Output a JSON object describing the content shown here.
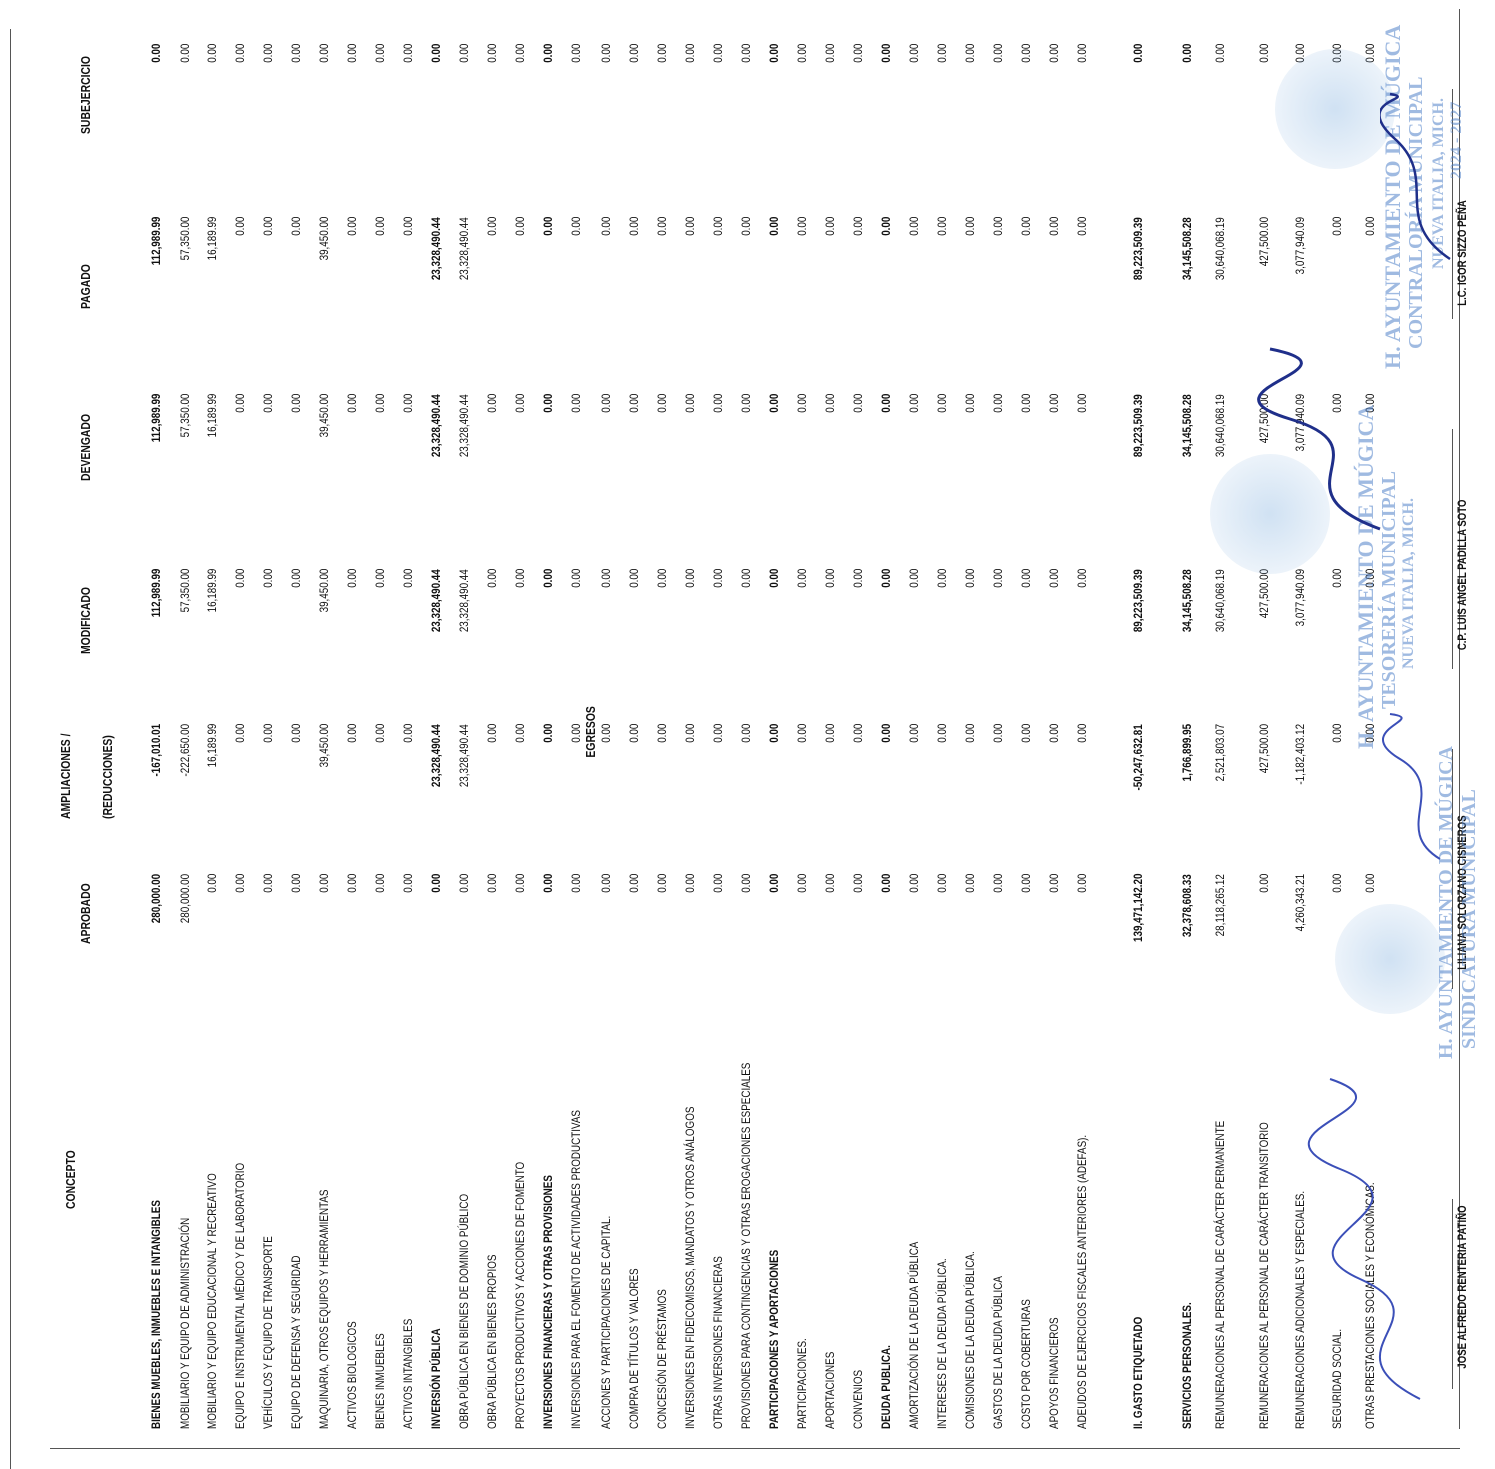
{
  "title": "EGRESOS",
  "headers": {
    "concepto": "CONCEPTO",
    "aprobado": "APROBADO",
    "ampliaciones": "AMPLIACIONES /",
    "reducciones": "(REDUCCIONES)",
    "modificado": "MODIFICADO",
    "devengado": "DEVENGADO",
    "pagado": "PAGADO",
    "subejercicio": "SUBEJERCICIO"
  },
  "rows": [
    {
      "concepto": "BIENES MUEBLES, INMUEBLES E INTANGIBLES",
      "aprobado": "280,000.00",
      "ampliaciones": "-167,010.01",
      "modificado": "112,989.99",
      "devengado": "112,989.99",
      "pagado": "112,989.99",
      "subejercicio": "0.00",
      "bold": true
    },
    {
      "concepto": "MOBILIARIO Y EQUIPO DE ADMINISTRACIÓN",
      "aprobado": "280,000.00",
      "ampliaciones": "-222,650.00",
      "modificado": "57,350.00",
      "devengado": "57,350.00",
      "pagado": "57,350.00",
      "subejercicio": "0.00"
    },
    {
      "concepto": "MOBILIARIO Y EQUIPO EDUCACIONAL Y RECREATIVO",
      "aprobado": "0.00",
      "ampliaciones": "16,189.99",
      "modificado": "16,189.99",
      "devengado": "16,189.99",
      "pagado": "16,189.99",
      "subejercicio": "0.00"
    },
    {
      "concepto": "EQUIPO E INSTRUMENTAL MÉDICO Y DE LABORATORIO",
      "aprobado": "0.00",
      "ampliaciones": "0.00",
      "modificado": "0.00",
      "devengado": "0.00",
      "pagado": "0.00",
      "subejercicio": "0.00"
    },
    {
      "concepto": "VEHÍCULOS Y EQUIPO DE TRANSPORTE",
      "aprobado": "0.00",
      "ampliaciones": "0.00",
      "modificado": "0.00",
      "devengado": "0.00",
      "pagado": "0.00",
      "subejercicio": "0.00"
    },
    {
      "concepto": "EQUIPO DE DEFENSA Y SEGURIDAD",
      "aprobado": "0.00",
      "ampliaciones": "0.00",
      "modificado": "0.00",
      "devengado": "0.00",
      "pagado": "0.00",
      "subejercicio": "0.00"
    },
    {
      "concepto": "MAQUINARIA, OTROS EQUIPOS Y HERRAMIENTAS",
      "aprobado": "0.00",
      "ampliaciones": "39,450.00",
      "modificado": "39,450.00",
      "devengado": "39,450.00",
      "pagado": "39,450.00",
      "subejercicio": "0.00"
    },
    {
      "concepto": "ACTIVOS BIOLOGICOS",
      "aprobado": "0.00",
      "ampliaciones": "0.00",
      "modificado": "0.00",
      "devengado": "0.00",
      "pagado": "0.00",
      "subejercicio": "0.00"
    },
    {
      "concepto": "BIENES INMUEBLES",
      "aprobado": "0.00",
      "ampliaciones": "0.00",
      "modificado": "0.00",
      "devengado": "0.00",
      "pagado": "0.00",
      "subejercicio": "0.00"
    },
    {
      "concepto": "ACTIVOS INTANGIBLES",
      "aprobado": "0.00",
      "ampliaciones": "0.00",
      "modificado": "0.00",
      "devengado": "0.00",
      "pagado": "0.00",
      "subejercicio": "0.00"
    },
    {
      "concepto": "INVERSIÓN PÚBLICA",
      "aprobado": "0.00",
      "ampliaciones": "23,328,490.44",
      "modificado": "23,328,490.44",
      "devengado": "23,328,490.44",
      "pagado": "23,328,490.44",
      "subejercicio": "0.00",
      "bold": true
    },
    {
      "concepto": "OBRA PÚBLICA EN BIENES DE DOMINIO PÚBLICO",
      "aprobado": "0.00",
      "ampliaciones": "23,328,490.44",
      "modificado": "23,328,490.44",
      "devengado": "23,328,490.44",
      "pagado": "23,328,490.44",
      "subejercicio": "0.00"
    },
    {
      "concepto": "OBRA PÚBLICA EN BIENES PROPIOS",
      "aprobado": "0.00",
      "ampliaciones": "0.00",
      "modificado": "0.00",
      "devengado": "0.00",
      "pagado": "0.00",
      "subejercicio": "0.00"
    },
    {
      "concepto": "PROYECTOS PRODUCTIVOS Y ACCIONES DE FOMENTO",
      "aprobado": "0.00",
      "ampliaciones": "0.00",
      "modificado": "0.00",
      "devengado": "0.00",
      "pagado": "0.00",
      "subejercicio": "0.00"
    },
    {
      "concepto": "INVERSIONES FINANCIERAS Y OTRAS PROVISIONES",
      "aprobado": "0.00",
      "ampliaciones": "0.00",
      "modificado": "0.00",
      "devengado": "0.00",
      "pagado": "0.00",
      "subejercicio": "0.00",
      "bold": true
    },
    {
      "concepto": "INVERSIONES PARA EL FOMENTO DE ACTIVIDADES PRODUCTIVAS",
      "aprobado": "0.00",
      "ampliaciones": "0.00",
      "modificado": "0.00",
      "devengado": "0.00",
      "pagado": "0.00",
      "subejercicio": "0.00"
    },
    {
      "concepto": "ACCIONES Y PARTICIPACIONES DE CAPITAL.",
      "aprobado": "0.00",
      "ampliaciones": "0.00",
      "modificado": "0.00",
      "devengado": "0.00",
      "pagado": "0.00",
      "subejercicio": "0.00"
    },
    {
      "concepto": "COMPRA DE TÍTULOS Y VALORES",
      "aprobado": "0.00",
      "ampliaciones": "0.00",
      "modificado": "0.00",
      "devengado": "0.00",
      "pagado": "0.00",
      "subejercicio": "0.00"
    },
    {
      "concepto": "CONCESIÓN DE PRÉSTAMOS",
      "aprobado": "0.00",
      "ampliaciones": "0.00",
      "modificado": "0.00",
      "devengado": "0.00",
      "pagado": "0.00",
      "subejercicio": "0.00"
    },
    {
      "concepto": "INVERSIONES EN FIDEICOMISOS, MANDATOS Y OTROS ANÁLOGOS",
      "aprobado": "0.00",
      "ampliaciones": "0.00",
      "modificado": "0.00",
      "devengado": "0.00",
      "pagado": "0.00",
      "subejercicio": "0.00"
    },
    {
      "concepto": "OTRAS INVERSIONES FINANCIERAS",
      "aprobado": "0.00",
      "ampliaciones": "0.00",
      "modificado": "0.00",
      "devengado": "0.00",
      "pagado": "0.00",
      "subejercicio": "0.00"
    },
    {
      "concepto": "PROVISIONES PARA CONTINGENCIAS Y OTRAS EROGACIONES ESPECIALES",
      "aprobado": "0.00",
      "ampliaciones": "0.00",
      "modificado": "0.00",
      "devengado": "0.00",
      "pagado": "0.00",
      "subejercicio": "0.00"
    },
    {
      "concepto": "PARTICIPACIONES Y APORTACIONES",
      "aprobado": "0.00",
      "ampliaciones": "0.00",
      "modificado": "0.00",
      "devengado": "0.00",
      "pagado": "0.00",
      "subejercicio": "0.00",
      "bold": true
    },
    {
      "concepto": "PARTICIPACIONES.",
      "aprobado": "0.00",
      "ampliaciones": "0.00",
      "modificado": "0.00",
      "devengado": "0.00",
      "pagado": "0.00",
      "subejercicio": "0.00"
    },
    {
      "concepto": "APORTACIONES",
      "aprobado": "0.00",
      "ampliaciones": "0.00",
      "modificado": "0.00",
      "devengado": "0.00",
      "pagado": "0.00",
      "subejercicio": "0.00"
    },
    {
      "concepto": "CONVENIOS",
      "aprobado": "0.00",
      "ampliaciones": "0.00",
      "modificado": "0.00",
      "devengado": "0.00",
      "pagado": "0.00",
      "subejercicio": "0.00"
    },
    {
      "concepto": "DEUDA PUBLICA.",
      "aprobado": "0.00",
      "ampliaciones": "0.00",
      "modificado": "0.00",
      "devengado": "0.00",
      "pagado": "0.00",
      "subejercicio": "0.00",
      "bold": true
    },
    {
      "concepto": "AMORTIZACIÓN DE LA DEUDA PÚBLICA",
      "aprobado": "0.00",
      "ampliaciones": "0.00",
      "modificado": "0.00",
      "devengado": "0.00",
      "pagado": "0.00",
      "subejercicio": "0.00"
    },
    {
      "concepto": "INTERESES DE LA DEUDA PÚBLICA.",
      "aprobado": "0.00",
      "ampliaciones": "0.00",
      "modificado": "0.00",
      "devengado": "0.00",
      "pagado": "0.00",
      "subejercicio": "0.00"
    },
    {
      "concepto": "COMISIONES DE LA DEUDA PÚBLICA.",
      "aprobado": "0.00",
      "ampliaciones": "0.00",
      "modificado": "0.00",
      "devengado": "0.00",
      "pagado": "0.00",
      "subejercicio": "0.00"
    },
    {
      "concepto": "GASTOS DE LA DEUDA PÚBLICA",
      "aprobado": "0.00",
      "ampliaciones": "0.00",
      "modificado": "0.00",
      "devengado": "0.00",
      "pagado": "0.00",
      "subejercicio": "0.00"
    },
    {
      "concepto": "COSTO POR COBERTURAS",
      "aprobado": "0.00",
      "ampliaciones": "0.00",
      "modificado": "0.00",
      "devengado": "0.00",
      "pagado": "0.00",
      "subejercicio": "0.00"
    },
    {
      "concepto": "APOYOS FINANCIEROS",
      "aprobado": "0.00",
      "ampliaciones": "0.00",
      "modificado": "0.00",
      "devengado": "0.00",
      "pagado": "0.00",
      "subejercicio": "0.00"
    },
    {
      "concepto": "ADEUDOS DE EJERCICIOS FISCALES ANTERIORES (ADEFAS).",
      "aprobado": "0.00",
      "ampliaciones": "0.00",
      "modificado": "0.00",
      "devengado": "0.00",
      "pagado": "0.00",
      "subejercicio": "0.00"
    },
    {
      "concepto": "II. GASTO ETIQUETADO",
      "aprobado": "139,471,142.20",
      "ampliaciones": "-50,247,632.81",
      "modificado": "89,223,509.39",
      "devengado": "89,223,509.39",
      "pagado": "89,223,509.39",
      "subejercicio": "0.00",
      "bold": true
    },
    {
      "concepto": "SERVICIOS PERSONALES.",
      "aprobado": "32,378,608.33",
      "ampliaciones": "1,766,899.95",
      "modificado": "34,145,508.28",
      "devengado": "34,145,508.28",
      "pagado": "34,145,508.28",
      "subejercicio": "0.00",
      "bold": true
    },
    {
      "concepto": "REMUNERACIONES AL PERSONAL DE CARÁCTER PERMANENTE",
      "aprobado": "28,118,265.12",
      "ampliaciones": "2,521,803.07",
      "modificado": "30,640,068.19",
      "devengado": "30,640,068.19",
      "pagado": "30,640,068.19",
      "subejercicio": "0.00"
    },
    {
      "concepto": "REMUNERACIONES AL PERSONAL DE CARÁCTER TRANSITORIO",
      "aprobado": "0.00",
      "ampliaciones": "427,500.00",
      "modificado": "427,500.00",
      "devengado": "427,500.00",
      "pagado": "427,500.00",
      "subejercicio": "0.00"
    },
    {
      "concepto": "REMUNERACIONES ADICIONALES Y ESPECIALES.",
      "aprobado": "4,260,343.21",
      "ampliaciones": "-1,182,403.12",
      "modificado": "3,077,940.09",
      "devengado": "3,077,940.09",
      "pagado": "3,077,940.09",
      "subejercicio": "0.00"
    },
    {
      "concepto": "SEGURIDAD SOCIAL.",
      "aprobado": "0.00",
      "ampliaciones": "0.00",
      "modificado": "0.00",
      "devengado": "0.00",
      "pagado": "0.00",
      "subejercicio": "0.00"
    },
    {
      "concepto": "OTRAS PRESTACIONES SOCIALES Y ECONÓMICAS.",
      "aprobado": "0.00",
      "ampliaciones": "0.00",
      "modificado": "0.00",
      "devengado": "0.00",
      "pagado": "0.00",
      "subejercicio": "0.00"
    }
  ],
  "signatures": [
    "JOSE ALFREDO RENTERIA PATIÑO",
    "LILIANA SOLORZANO CISNEROS",
    "C.P. LUIS ANGEL PADILLA SOTO",
    "L.C. IGOR SIZZO PEÑA"
  ],
  "stamps": [
    "H. AYUNTAMIENTO DE MÚGICA",
    "SINDICATURA MUNICIPAL",
    "TESORERÍA MUNICIPAL",
    "CONTRALORÍA MUNICIPAL",
    "NUEVA ITALIA, MICH.",
    "2024 - 2027"
  ]
}
